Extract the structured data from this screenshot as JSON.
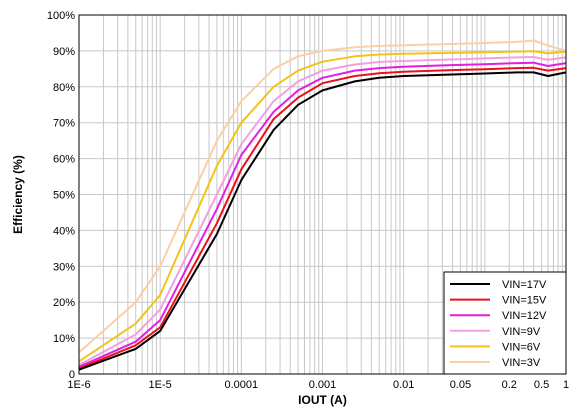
{
  "chart_data": {
    "type": "line",
    "title": "",
    "xlabel": "IOUT (A)",
    "ylabel": "Efficiency (%)",
    "x_scale": "log",
    "xlim": [
      1e-06,
      1
    ],
    "ylim": [
      0,
      100
    ],
    "grid": true,
    "legend_position": "bottom-right",
    "x_tick_values": [
      1e-06,
      1e-05,
      0.0001,
      0.001,
      0.01,
      0.05,
      0.2,
      0.5,
      1
    ],
    "x_tick_labels": [
      "1E-6",
      "1E-5",
      "0.0001",
      "0.001",
      "0.01",
      "0.05",
      "0.2",
      "0.5",
      "1"
    ],
    "y_tick_values": [
      0,
      10,
      20,
      30,
      40,
      50,
      60,
      70,
      80,
      90,
      100
    ],
    "y_tick_labels": [
      "0",
      "10%",
      "20%",
      "30%",
      "40%",
      "50%",
      "60%",
      "70%",
      "80%",
      "90%",
      "100%"
    ],
    "x": [
      1e-06,
      5e-06,
      1e-05,
      5e-05,
      0.0001,
      0.00025,
      0.0005,
      0.001,
      0.0025,
      0.005,
      0.01,
      0.025,
      0.05,
      0.1,
      0.25,
      0.4,
      0.6,
      1
    ],
    "series": [
      {
        "name": "VIN=17V",
        "color": "#000000",
        "values": [
          1.2,
          7,
          12,
          39,
          54,
          68,
          75,
          79,
          81.5,
          82.5,
          83,
          83.3,
          83.5,
          83.7,
          84,
          84,
          83,
          84
        ]
      },
      {
        "name": "VIN=15V",
        "color": "#e8111d",
        "values": [
          1.5,
          8,
          13,
          42,
          57,
          71,
          77,
          81,
          83,
          83.8,
          84.2,
          84.5,
          84.7,
          84.9,
          85.2,
          85.3,
          84.5,
          85.2
        ]
      },
      {
        "name": "VIN=12V",
        "color": "#e020e0",
        "values": [
          2,
          9,
          15,
          46,
          61,
          73,
          79,
          82.5,
          84.5,
          85.2,
          85.6,
          85.9,
          86.1,
          86.3,
          86.6,
          86.7,
          85.8,
          86.6
        ]
      },
      {
        "name": "VIN=9V",
        "color": "#f2a0e0",
        "values": [
          2.5,
          11,
          18,
          50,
          64,
          76,
          81.5,
          84.5,
          86.2,
          86.9,
          87.2,
          87.5,
          87.7,
          87.9,
          88.2,
          88.3,
          87.5,
          88.2
        ]
      },
      {
        "name": "VIN=6V",
        "color": "#f2c318",
        "values": [
          3.5,
          14,
          22,
          58,
          70,
          80,
          84.5,
          87,
          88.5,
          89,
          89.2,
          89.4,
          89.5,
          89.6,
          89.8,
          89.9,
          89.3,
          89.8
        ]
      },
      {
        "name": "VIN=3V",
        "color": "#f9cfa6",
        "values": [
          6,
          20,
          30,
          65,
          76,
          85,
          88.5,
          90,
          91,
          91.4,
          91.6,
          91.8,
          92,
          92.2,
          92.5,
          92.9,
          91.5,
          90
        ]
      }
    ]
  }
}
